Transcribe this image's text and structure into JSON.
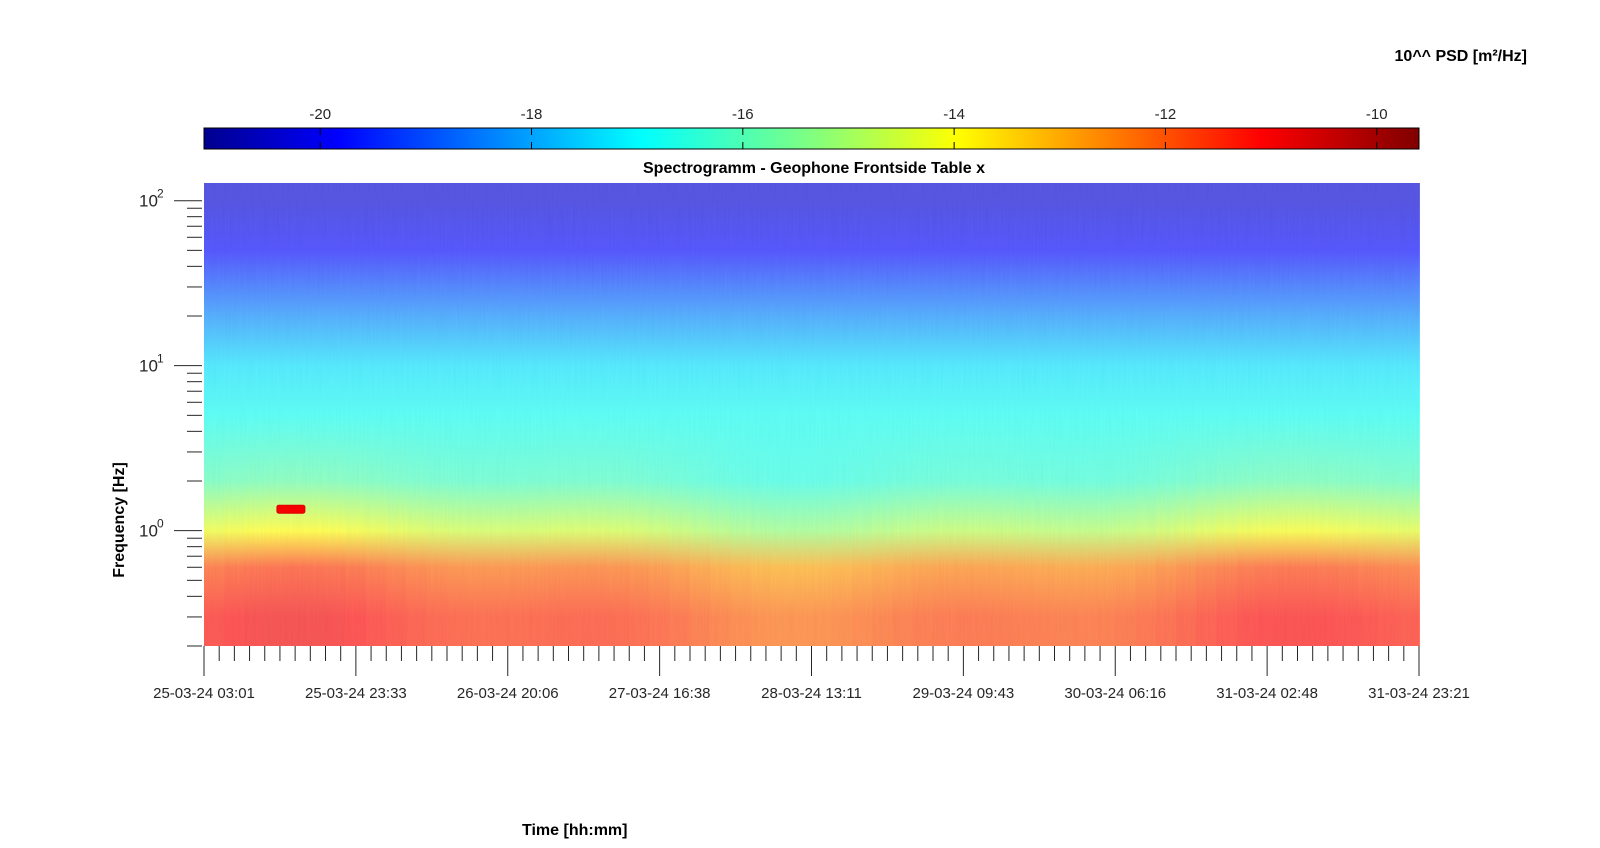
{
  "chart_data": {
    "type": "heatmap",
    "title": "Spectrogramm - Geophone Frontside Table x",
    "xlabel": "Time [hh:mm]",
    "ylabel": "Frequency [Hz]",
    "y_scale": "log",
    "ylim": [
      0.2,
      128
    ],
    "x_ticks": [
      "25-03-24 03:01",
      "25-03-24 23:33",
      "26-03-24 20:06",
      "27-03-24 16:38",
      "28-03-24 13:11",
      "29-03-24 09:43",
      "30-03-24 06:16",
      "31-03-24 02:48",
      "31-03-24 23:21"
    ],
    "y_ticks": [
      {
        "base": "10",
        "exp": "0",
        "value": 1
      },
      {
        "base": "10",
        "exp": "1",
        "value": 10
      },
      {
        "base": "10",
        "exp": "2",
        "value": 100
      }
    ],
    "colorbar": {
      "label": "10^^ PSD [m²/Hz]",
      "colormap": "jet",
      "range": [
        -21.1,
        -9.6
      ],
      "ticks": [
        "-20",
        "-18",
        "-16",
        "-14",
        "-12",
        "-10"
      ],
      "tick_values": [
        -20,
        -18,
        -16,
        -14,
        -12,
        -10
      ]
    },
    "band_levels_log10_psd": [
      {
        "freq_hz": 100,
        "value": -20.3
      },
      {
        "freq_hz": 50,
        "value": -19.8
      },
      {
        "freq_hz": 20,
        "value": -18.3
      },
      {
        "freq_hz": 10,
        "value": -17.3
      },
      {
        "freq_hz": 5,
        "value": -16.8
      },
      {
        "freq_hz": 2,
        "value": -16.2
      },
      {
        "freq_hz": 1,
        "value": -14.6
      },
      {
        "freq_hz": 0.6,
        "value": -12.3
      },
      {
        "freq_hz": 0.3,
        "value": -11.6
      }
    ],
    "events": [
      {
        "time": "25-03-24 ~10:00",
        "freq_hz": 1.35,
        "value": -11.0
      }
    ]
  }
}
